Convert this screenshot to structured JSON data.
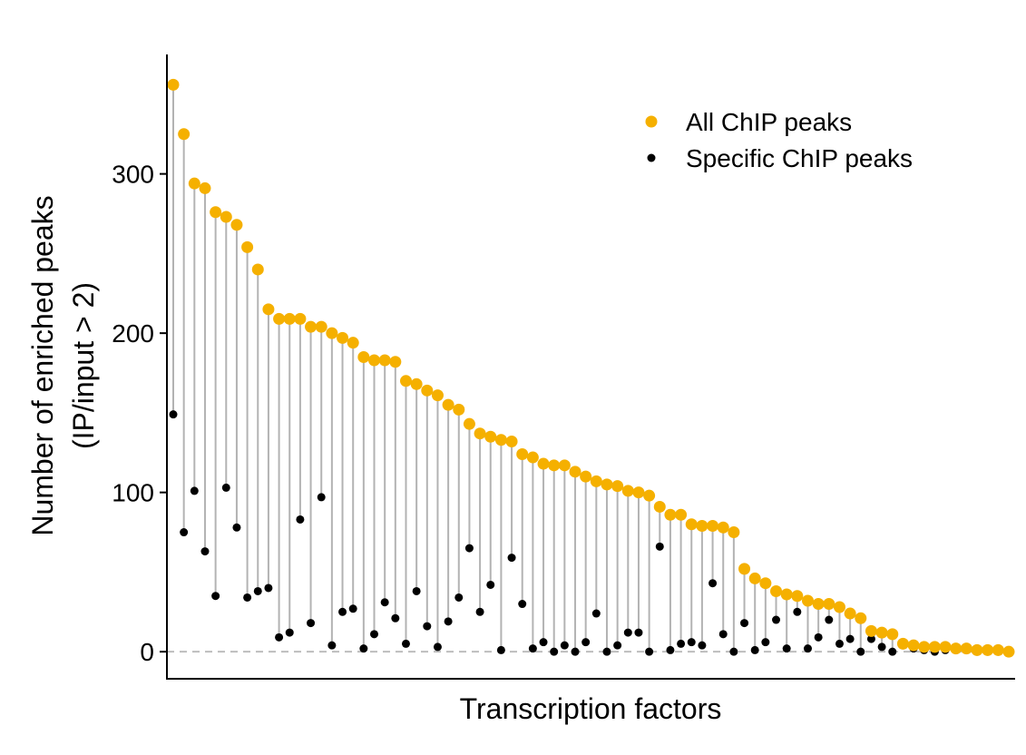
{
  "chart_data": {
    "type": "scatter",
    "xlabel": "Transcription factors",
    "ylabel_lines": [
      "Number of enriched peaks",
      "(IP/input > 2)"
    ],
    "ylim": [
      -17,
      375
    ],
    "yticks": [
      0,
      100,
      200,
      300
    ],
    "grid": false,
    "reference_line_y": 0,
    "legend_position": "top-right",
    "colors": {
      "all": "#F5B000",
      "specific": "#000000",
      "stem": "#b3b3b3",
      "reference": "#bdbdbd"
    },
    "series": [
      {
        "name": "All ChIP peaks",
        "values": [
          356,
          325,
          294,
          291,
          276,
          273,
          268,
          254,
          240,
          215,
          209,
          209,
          209,
          204,
          204,
          200,
          197,
          194,
          185,
          183,
          183,
          182,
          170,
          168,
          164,
          161,
          155,
          152,
          143,
          137,
          135,
          133,
          132,
          124,
          122,
          118,
          117,
          117,
          113,
          110,
          107,
          105,
          104,
          101,
          100,
          98,
          91,
          86,
          86,
          80,
          79,
          79,
          78,
          75,
          52,
          46,
          43,
          38,
          36,
          35,
          32,
          30,
          30,
          28,
          24,
          21,
          13,
          12,
          11,
          5,
          4,
          3,
          3,
          3,
          2,
          2,
          1,
          1,
          1,
          0
        ]
      },
      {
        "name": "Specific ChIP peaks",
        "values": [
          149,
          75,
          101,
          63,
          35,
          103,
          78,
          34,
          38,
          40,
          9,
          12,
          83,
          18,
          97,
          4,
          25,
          27,
          2,
          11,
          31,
          21,
          5,
          38,
          16,
          3,
          19,
          34,
          65,
          25,
          42,
          1,
          59,
          30,
          2,
          6,
          0,
          4,
          0,
          6,
          24,
          0,
          4,
          12,
          12,
          0,
          66,
          1,
          5,
          6,
          4,
          43,
          11,
          0,
          18,
          1,
          6,
          20,
          2,
          25,
          2,
          9,
          20,
          5,
          8,
          0,
          8,
          3,
          0,
          4,
          2,
          1,
          0,
          1,
          1,
          1,
          0,
          0,
          0,
          0
        ]
      }
    ]
  }
}
